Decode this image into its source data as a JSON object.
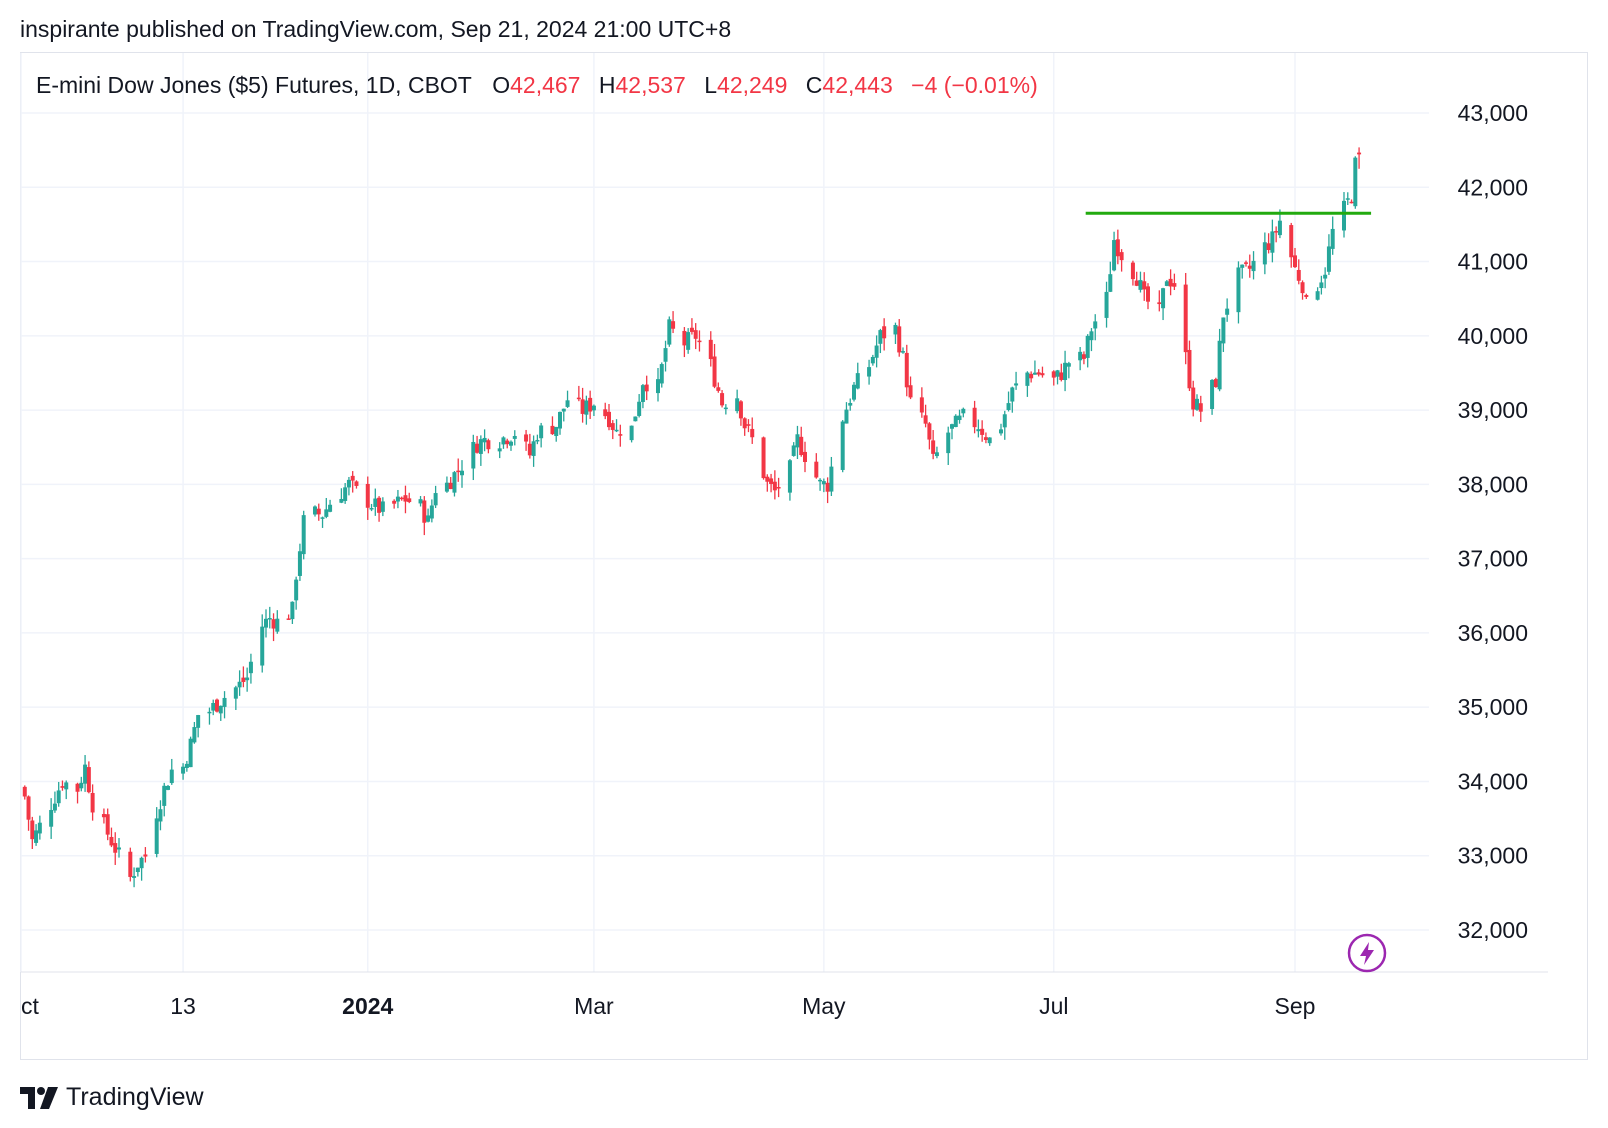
{
  "header": {
    "published_line": "inspirante published on TradingView.com, Sep 21, 2024 21:00 UTC+8"
  },
  "legend": {
    "symbol": "E-mini Dow Jones ($5) Futures, 1D, CBOT",
    "open_label": "O",
    "open": "42,467",
    "high_label": "H",
    "high": "42,537",
    "low_label": "L",
    "low": "42,249",
    "close_label": "C",
    "close": "42,443",
    "change": "−4 (−0.01%)"
  },
  "footer": {
    "brand": "TradingView"
  },
  "colors": {
    "up": "#26a69a",
    "down": "#f23645",
    "level": "#22aa0f",
    "grid": "#f0f3fa",
    "text": "#131722",
    "badge": "#9c27b0"
  },
  "icons": {
    "snapshot_badge": "lightning-icon",
    "logo": "tradingview-logo-icon"
  },
  "chart_data": {
    "type": "candlestick",
    "y_ticks": [
      "32,000",
      "33,000",
      "34,000",
      "35,000",
      "36,000",
      "37,000",
      "38,000",
      "39,000",
      "40,000",
      "41,000",
      "42,000",
      "43,000"
    ],
    "ylim": [
      31650,
      43200
    ],
    "x_ticks": [
      {
        "label": "ct",
        "date": "2023-10-01",
        "bold": false
      },
      {
        "label": "13",
        "date": "2023-11-13",
        "bold": false
      },
      {
        "label": "2024",
        "date": "2024-01-01",
        "bold": true
      },
      {
        "label": "Mar",
        "date": "2024-03-01",
        "bold": false
      },
      {
        "label": "May",
        "date": "2024-05-01",
        "bold": false
      },
      {
        "label": "Jul",
        "date": "2024-07-01",
        "bold": false
      },
      {
        "label": "Sep",
        "date": "2024-09-03",
        "bold": false
      }
    ],
    "xlim": [
      "2023-10-01",
      "2024-10-10"
    ],
    "horizontal_level": {
      "value": 41650,
      "from": "2024-07-10",
      "to": "2024-09-20"
    },
    "anchors": [
      [
        "2023-10-02",
        33800
      ],
      [
        "2023-10-04",
        33200
      ],
      [
        "2023-10-06",
        33400
      ],
      [
        "2023-10-10",
        33800
      ],
      [
        "2023-10-12",
        34000
      ],
      [
        "2023-10-16",
        33900
      ],
      [
        "2023-10-18",
        34200
      ],
      [
        "2023-10-20",
        33700
      ],
      [
        "2023-10-24",
        33300
      ],
      [
        "2023-10-26",
        33100
      ],
      [
        "2023-10-30",
        32700
      ],
      [
        "2023-11-01",
        32900
      ],
      [
        "2023-11-03",
        33000
      ],
      [
        "2023-11-06",
        33600
      ],
      [
        "2023-11-08",
        33900
      ],
      [
        "2023-11-10",
        34150
      ],
      [
        "2023-11-13",
        34200
      ],
      [
        "2023-11-15",
        34500
      ],
      [
        "2023-11-17",
        34900
      ],
      [
        "2023-11-20",
        34950
      ],
      [
        "2023-11-23",
        35100
      ],
      [
        "2023-11-28",
        35300
      ],
      [
        "2023-11-30",
        35400
      ],
      [
        "2023-12-01",
        35600
      ],
      [
        "2023-12-04",
        36100
      ],
      [
        "2023-12-06",
        36200
      ],
      [
        "2023-12-08",
        36150
      ],
      [
        "2023-12-12",
        36300
      ],
      [
        "2023-12-13",
        36800
      ],
      [
        "2023-12-15",
        37500
      ],
      [
        "2023-12-18",
        37600
      ],
      [
        "2023-12-20",
        37600
      ],
      [
        "2023-12-22",
        37750
      ],
      [
        "2023-12-27",
        38000
      ],
      [
        "2023-12-29",
        37900
      ],
      [
        "2024-01-03",
        37700
      ],
      [
        "2024-01-05",
        37650
      ],
      [
        "2024-01-09",
        37750
      ],
      [
        "2024-01-11",
        37800
      ],
      [
        "2024-01-15",
        37700
      ],
      [
        "2024-01-17",
        37500
      ],
      [
        "2024-01-19",
        37950
      ],
      [
        "2024-01-22",
        38000
      ],
      [
        "2024-01-25",
        38200
      ],
      [
        "2024-01-30",
        38550
      ],
      [
        "2024-02-01",
        38600
      ],
      [
        "2024-02-05",
        38600
      ],
      [
        "2024-02-09",
        38700
      ],
      [
        "2024-02-13",
        38400
      ],
      [
        "2024-02-15",
        38700
      ],
      [
        "2024-02-20",
        38800
      ],
      [
        "2024-02-23",
        39150
      ],
      [
        "2024-02-27",
        39000
      ],
      [
        "2024-03-01",
        39100
      ],
      [
        "2024-03-05",
        38900
      ],
      [
        "2024-03-07",
        38700
      ],
      [
        "2024-03-08",
        38750
      ],
      [
        "2024-03-11",
        38750
      ],
      [
        "2024-03-14",
        39400
      ],
      [
        "2024-03-18",
        39300
      ],
      [
        "2024-03-21",
        40100
      ],
      [
        "2024-03-25",
        39900
      ],
      [
        "2024-03-28",
        40000
      ],
      [
        "2024-04-01",
        39600
      ],
      [
        "2024-04-04",
        39100
      ],
      [
        "2024-04-08",
        39200
      ],
      [
        "2024-04-10",
        38800
      ],
      [
        "2024-04-12",
        38600
      ],
      [
        "2024-04-16",
        38000
      ],
      [
        "2024-04-18",
        37900
      ],
      [
        "2024-04-22",
        38200
      ],
      [
        "2024-04-24",
        38600
      ],
      [
        "2024-04-26",
        38400
      ],
      [
        "2024-04-30",
        38000
      ],
      [
        "2024-05-02",
        38000
      ],
      [
        "2024-05-06",
        38900
      ],
      [
        "2024-05-09",
        39300
      ],
      [
        "2024-05-13",
        39600
      ],
      [
        "2024-05-16",
        40000
      ],
      [
        "2024-05-20",
        40100
      ],
      [
        "2024-05-22",
        39700
      ],
      [
        "2024-05-24",
        39100
      ],
      [
        "2024-05-28",
        38800
      ],
      [
        "2024-05-30",
        38300
      ],
      [
        "2024-06-03",
        38700
      ],
      [
        "2024-06-05",
        38800
      ],
      [
        "2024-06-07",
        38900
      ],
      [
        "2024-06-11",
        38800
      ],
      [
        "2024-06-14",
        38600
      ],
      [
        "2024-06-17",
        38800
      ],
      [
        "2024-06-20",
        39250
      ],
      [
        "2024-06-24",
        39500
      ],
      [
        "2024-06-27",
        39500
      ],
      [
        "2024-07-01",
        39400
      ],
      [
        "2024-07-03",
        39500
      ],
      [
        "2024-07-05",
        39650
      ],
      [
        "2024-07-09",
        39700
      ],
      [
        "2024-07-11",
        40100
      ],
      [
        "2024-07-15",
        40500
      ],
      [
        "2024-07-17",
        41300
      ],
      [
        "2024-07-19",
        41100
      ],
      [
        "2024-07-23",
        40800
      ],
      [
        "2024-07-25",
        40500
      ],
      [
        "2024-07-29",
        40300
      ],
      [
        "2024-07-31",
        40800
      ],
      [
        "2024-08-02",
        40700
      ],
      [
        "2024-08-05",
        39700
      ],
      [
        "2024-08-07",
        39100
      ],
      [
        "2024-08-09",
        39000
      ],
      [
        "2024-08-13",
        39400
      ],
      [
        "2024-08-15",
        40300
      ],
      [
        "2024-08-19",
        40800
      ],
      [
        "2024-08-22",
        40900
      ],
      [
        "2024-08-26",
        41200
      ],
      [
        "2024-08-28",
        41300
      ],
      [
        "2024-08-30",
        41550
      ],
      [
        "2024-09-03",
        40900
      ],
      [
        "2024-09-05",
        40700
      ],
      [
        "2024-09-06",
        40400
      ],
      [
        "2024-09-09",
        40700
      ],
      [
        "2024-09-11",
        40900
      ],
      [
        "2024-09-13",
        41400
      ],
      [
        "2024-09-16",
        41700
      ],
      [
        "2024-09-17",
        41800
      ],
      [
        "2024-09-18",
        41900
      ],
      [
        "2024-09-19",
        42300
      ],
      [
        "2024-09-20",
        42443
      ]
    ]
  }
}
